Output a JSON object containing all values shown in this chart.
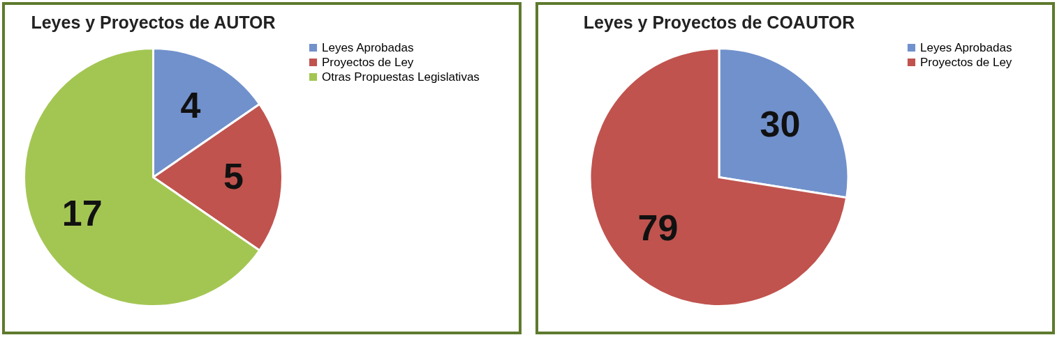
{
  "chart_data": [
    {
      "type": "pie",
      "title": "Leyes y Proyectos de AUTOR",
      "categories": [
        "Leyes Aprobadas",
        "Proyectos de Ley",
        "Otras Propuestas Legislativas"
      ],
      "values": [
        4,
        5,
        17
      ],
      "colors": [
        "#7191cc",
        "#c0534e",
        "#a3c653"
      ],
      "data_labels": true,
      "legend": "right"
    },
    {
      "type": "pie",
      "title": "Leyes y Proyectos de COAUTOR",
      "categories": [
        "Leyes Aprobadas",
        "Proyectos de Ley"
      ],
      "values": [
        30,
        79
      ],
      "colors": [
        "#7191cc",
        "#c0534e"
      ],
      "data_labels": true,
      "legend": "right"
    }
  ]
}
